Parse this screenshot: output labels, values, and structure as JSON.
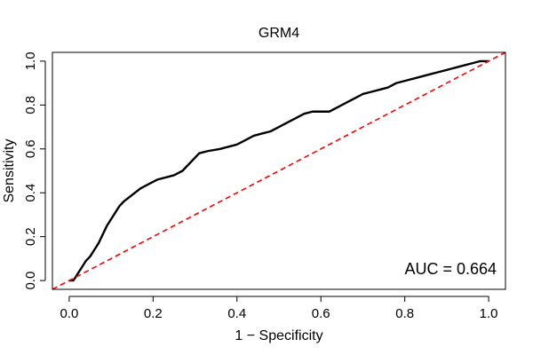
{
  "chart_data": {
    "type": "line",
    "title": "GRM4",
    "xlabel": "1 − Specificity",
    "ylabel": "Sensitivity",
    "xlim": [
      -0.04,
      1.04
    ],
    "ylim": [
      -0.04,
      1.04
    ],
    "xticks": [
      "0.0",
      "0.2",
      "0.4",
      "0.6",
      "0.8",
      "1.0"
    ],
    "yticks": [
      "0.0",
      "0.2",
      "0.4",
      "0.6",
      "0.8",
      "1.0"
    ],
    "grid": false,
    "annotation": "AUC = 0.664",
    "series": [
      {
        "style": "roc-curve",
        "color": "#000000",
        "x": [
          0.0,
          0.01,
          0.02,
          0.03,
          0.04,
          0.05,
          0.06,
          0.07,
          0.08,
          0.09,
          0.1,
          0.11,
          0.12,
          0.13,
          0.15,
          0.17,
          0.19,
          0.21,
          0.23,
          0.25,
          0.27,
          0.29,
          0.31,
          0.33,
          0.36,
          0.38,
          0.4,
          0.42,
          0.44,
          0.46,
          0.48,
          0.5,
          0.52,
          0.54,
          0.56,
          0.58,
          0.6,
          0.62,
          0.64,
          0.66,
          0.68,
          0.7,
          0.72,
          0.74,
          0.76,
          0.78,
          0.8,
          0.82,
          0.84,
          0.86,
          0.88,
          0.9,
          0.92,
          0.94,
          0.96,
          0.98,
          1.0
        ],
        "y": [
          0.0,
          0.0,
          0.03,
          0.06,
          0.09,
          0.11,
          0.14,
          0.17,
          0.21,
          0.25,
          0.28,
          0.31,
          0.34,
          0.36,
          0.39,
          0.42,
          0.44,
          0.46,
          0.47,
          0.48,
          0.5,
          0.54,
          0.58,
          0.59,
          0.6,
          0.61,
          0.62,
          0.64,
          0.66,
          0.67,
          0.68,
          0.7,
          0.72,
          0.74,
          0.76,
          0.77,
          0.77,
          0.77,
          0.79,
          0.81,
          0.83,
          0.85,
          0.86,
          0.87,
          0.88,
          0.9,
          0.91,
          0.92,
          0.93,
          0.94,
          0.95,
          0.96,
          0.97,
          0.98,
          0.99,
          1.0,
          1.0
        ]
      },
      {
        "style": "reference-diagonal",
        "color": "#ff0000",
        "dashed": true,
        "x": [
          -0.04,
          1.04
        ],
        "y": [
          -0.04,
          1.04
        ]
      }
    ]
  }
}
